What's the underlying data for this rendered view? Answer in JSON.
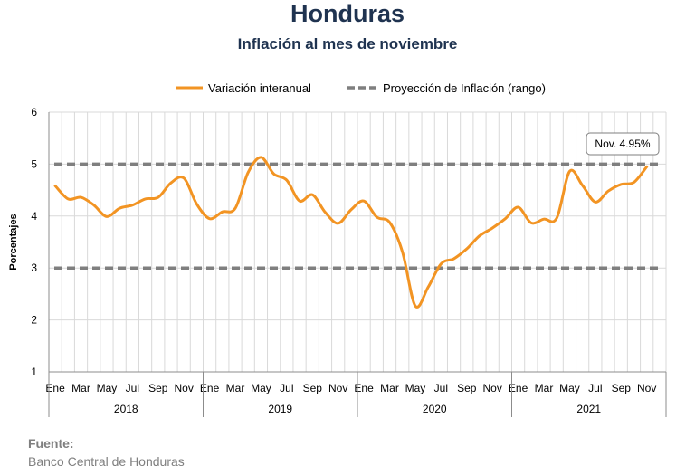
{
  "header": {
    "title": "Honduras",
    "subtitle": "Inflación al mes de noviembre"
  },
  "footer": {
    "source_label": "Fuente:",
    "source_text": "Banco Central de Honduras"
  },
  "colors": {
    "title": "#1f3350",
    "series_line": "#f29423",
    "target_band": "#7f7f7f",
    "grid": "#d9d9d9"
  },
  "chart_data": {
    "type": "line",
    "title": "Honduras",
    "subtitle": "Inflación al mes de noviembre",
    "ylabel": "Porcentajes",
    "ylim": [
      1,
      6
    ],
    "yticks": [
      1,
      2,
      3,
      4,
      5,
      6
    ],
    "grid": true,
    "legend_position": "top",
    "x_month_labels": [
      "Ene",
      "Mar",
      "May",
      "Jul",
      "Sep",
      "Nov"
    ],
    "years": [
      "2018",
      "2019",
      "2020",
      "2021"
    ],
    "series": [
      {
        "name": "Variación interanual",
        "style": "solid",
        "values": [
          4.58,
          4.33,
          4.36,
          4.21,
          3.99,
          4.15,
          4.21,
          4.33,
          4.36,
          4.64,
          4.73,
          4.23,
          3.95,
          4.08,
          4.15,
          4.84,
          5.13,
          4.81,
          4.69,
          4.29,
          4.41,
          4.07,
          3.86,
          4.12,
          4.29,
          3.98,
          3.88,
          3.31,
          2.27,
          2.63,
          3.08,
          3.18,
          3.37,
          3.62,
          3.77,
          3.95,
          4.17,
          3.87,
          3.94,
          3.96,
          4.86,
          4.59,
          4.27,
          4.48,
          4.61,
          4.65,
          4.95
        ]
      },
      {
        "name": "Proyección de Inflación (rango)",
        "style": "dashed",
        "upper": 5,
        "lower": 3
      }
    ],
    "annotation": "Nov. 4.95%"
  }
}
